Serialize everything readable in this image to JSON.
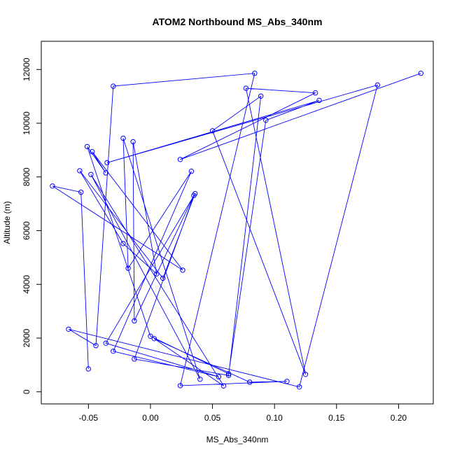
{
  "chart_data": {
    "type": "line",
    "title": "ATOM2 Northbound MS_Abs_340nm",
    "xlabel": "MS_Abs_340nm",
    "ylabel": "Altitude (m)",
    "xlim": [
      -0.088,
      0.228
    ],
    "ylim": [
      -450,
      13050
    ],
    "x_ticks": [
      -0.05,
      0.0,
      0.05,
      0.1,
      0.15,
      0.2
    ],
    "x_tick_labels": [
      "-0.05",
      "0.00",
      "0.05",
      "0.10",
      "0.15",
      "0.20"
    ],
    "y_ticks": [
      0,
      2000,
      4000,
      6000,
      8000,
      10000,
      12000
    ],
    "y_tick_labels": [
      "0",
      "2000",
      "4000",
      "6000",
      "8000",
      "10000",
      "12000"
    ],
    "grid": false,
    "marker": "open-circle",
    "series": [
      {
        "color": "#0000ff",
        "points": [
          {
            "x": -0.05,
            "y": 850
          },
          {
            "x": -0.056,
            "y": 7430
          },
          {
            "x": -0.079,
            "y": 7660
          },
          {
            "x": 0.026,
            "y": 4530
          },
          {
            "x": -0.047,
            "y": 8940
          },
          {
            "x": -0.036,
            "y": 8150
          },
          {
            "x": -0.051,
            "y": 9130
          },
          {
            "x": 0.0,
            "y": 2070
          },
          {
            "x": 0.063,
            "y": 670
          },
          {
            "x": 0.093,
            "y": 10110
          },
          {
            "x": 0.136,
            "y": 10850
          },
          {
            "x": -0.035,
            "y": 8530
          },
          {
            "x": 0.183,
            "y": 11420
          },
          {
            "x": 0.12,
            "y": 180
          },
          {
            "x": -0.066,
            "y": 2330
          },
          {
            "x": -0.044,
            "y": 1720
          },
          {
            "x": -0.03,
            "y": 11380
          },
          {
            "x": 0.084,
            "y": 11860
          },
          {
            "x": 0.024,
            "y": 230
          },
          {
            "x": 0.11,
            "y": 390
          },
          {
            "x": 0.08,
            "y": 360
          },
          {
            "x": 0.003,
            "y": 1980
          },
          {
            "x": 0.059,
            "y": 220
          },
          {
            "x": -0.048,
            "y": 8090
          },
          {
            "x": 0.04,
            "y": 470
          },
          {
            "x": -0.022,
            "y": 9440
          },
          {
            "x": -0.018,
            "y": 4600
          },
          {
            "x": 0.033,
            "y": 8210
          },
          {
            "x": -0.03,
            "y": 1510
          },
          {
            "x": 0.055,
            "y": 560
          },
          {
            "x": -0.036,
            "y": 1810
          },
          {
            "x": 0.036,
            "y": 7380
          },
          {
            "x": 0.01,
            "y": 4230
          },
          {
            "x": -0.057,
            "y": 8230
          },
          {
            "x": -0.022,
            "y": 5520
          },
          {
            "x": 0.005,
            "y": 4390
          },
          {
            "x": -0.014,
            "y": 9310
          },
          {
            "x": -0.013,
            "y": 2640
          },
          {
            "x": 0.035,
            "y": 7310
          },
          {
            "x": -0.013,
            "y": 1220
          },
          {
            "x": 0.063,
            "y": 610
          },
          {
            "x": 0.089,
            "y": 11010
          },
          {
            "x": 0.05,
            "y": 9720
          },
          {
            "x": 0.125,
            "y": 650
          },
          {
            "x": 0.077,
            "y": 11300
          },
          {
            "x": 0.133,
            "y": 11130
          },
          {
            "x": 0.024,
            "y": 8650
          },
          {
            "x": 0.218,
            "y": 11860
          }
        ]
      }
    ]
  }
}
